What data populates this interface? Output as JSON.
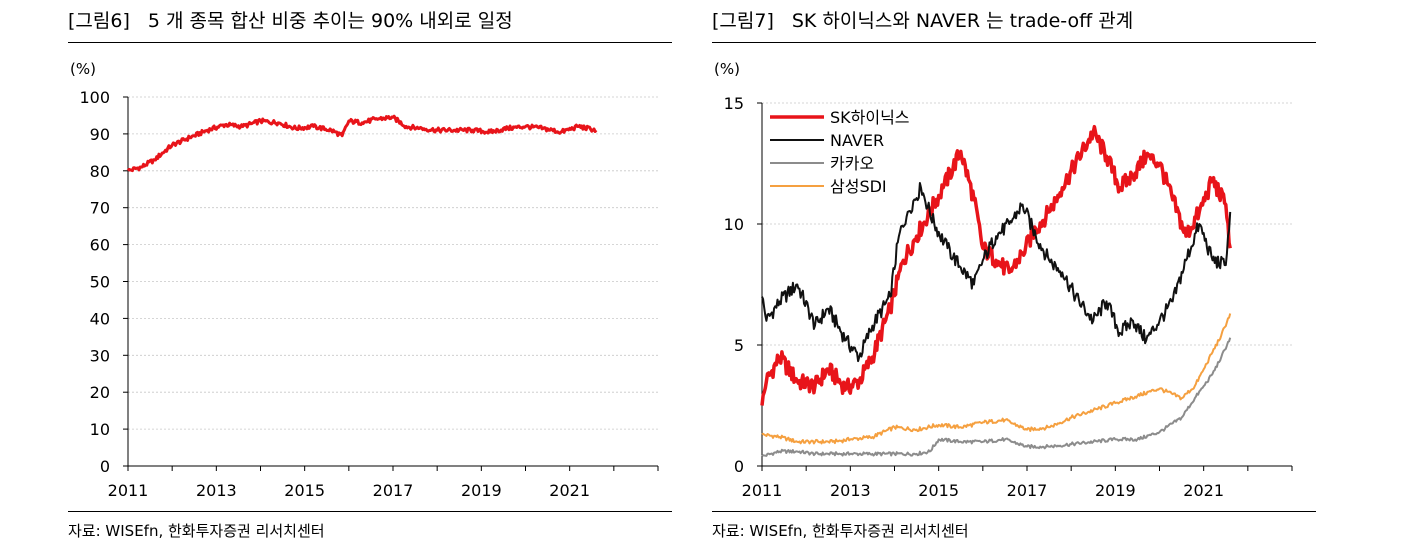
{
  "left": {
    "figure_no": "[그림6]",
    "title": "5 개 종목 합산 비중 추이는 90% 내외로 일정",
    "unit": "(%)",
    "source": "자료: WISEfn, 한화투자증권 리서치센터"
  },
  "right": {
    "figure_no": "[그림7]",
    "title": "SK 하이닉스와 NAVER 는 trade-off 관계",
    "unit": "(%)",
    "source": "자료: WISEfn, 한화투자증권 리서치센터"
  },
  "chart_data": [
    {
      "type": "line",
      "title": "5 개 종목 합산 비중 추이는 90% 내외로 일정",
      "ylabel": "(%)",
      "xlim": [
        2011,
        2023
      ],
      "ylim": [
        0,
        100
      ],
      "yticks": [
        0,
        10,
        20,
        30,
        40,
        50,
        60,
        70,
        80,
        90,
        100
      ],
      "xticks": [
        2011,
        2013,
        2015,
        2017,
        2019,
        2021
      ],
      "grid": true,
      "series": [
        {
          "name": "",
          "color": "#e8141a",
          "x": [
            2011.0,
            2011.3,
            2011.6,
            2012.0,
            2012.4,
            2012.8,
            2013.2,
            2013.6,
            2014.0,
            2014.4,
            2014.8,
            2015.2,
            2015.6,
            2015.85,
            2016.0,
            2016.3,
            2016.6,
            2017.0,
            2017.3,
            2017.6,
            2018.0,
            2018.4,
            2018.8,
            2019.2,
            2019.6,
            2020.0,
            2020.4,
            2020.8,
            2021.2,
            2021.6
          ],
          "y": [
            80,
            81,
            83,
            87,
            89,
            91,
            92.5,
            92,
            93.5,
            93,
            91.5,
            92,
            91,
            89.5,
            93.5,
            93,
            94,
            94.5,
            92,
            91.5,
            91,
            91,
            91,
            90.5,
            91.5,
            92,
            91.5,
            90.5,
            92,
            91
          ]
        }
      ]
    },
    {
      "type": "line",
      "title": "SK 하이닉스와 NAVER 는 trade-off 관계",
      "ylabel": "(%)",
      "xlim": [
        2011,
        2023
      ],
      "ylim": [
        0,
        15
      ],
      "yticks": [
        0,
        5,
        10,
        15
      ],
      "xticks": [
        2011,
        2013,
        2015,
        2017,
        2019,
        2021
      ],
      "grid": true,
      "legend": "top-left",
      "series": [
        {
          "name": "SK하이닉스",
          "color": "#e8141a",
          "x": [
            2011.0,
            2011.1,
            2011.4,
            2011.8,
            2012.2,
            2012.5,
            2012.9,
            2013.2,
            2013.5,
            2013.9,
            2014.2,
            2014.5,
            2014.8,
            2015.1,
            2015.5,
            2015.8,
            2016.0,
            2016.3,
            2016.6,
            2016.9,
            2017.2,
            2017.5,
            2017.8,
            2018.1,
            2018.5,
            2018.8,
            2019.1,
            2019.4,
            2019.7,
            2020.0,
            2020.3,
            2020.6,
            2020.9,
            2021.2,
            2021.5,
            2021.6
          ],
          "y": [
            2.5,
            3.5,
            4.5,
            3.5,
            3.3,
            4.0,
            3.2,
            3.5,
            4.5,
            6.5,
            8.5,
            9.5,
            10.5,
            11.5,
            13.0,
            11.0,
            9.0,
            8.5,
            8.0,
            8.8,
            9.8,
            10.5,
            11.5,
            12.5,
            13.8,
            12.8,
            11.5,
            12.0,
            12.8,
            12.5,
            11.0,
            9.5,
            10.5,
            11.8,
            10.8,
            9.0
          ]
        },
        {
          "name": "NAVER",
          "color": "#111111",
          "x": [
            2011.0,
            2011.1,
            2011.4,
            2011.8,
            2012.2,
            2012.5,
            2012.9,
            2013.2,
            2013.5,
            2013.9,
            2014.1,
            2014.3,
            2014.6,
            2014.9,
            2015.2,
            2015.5,
            2015.8,
            2016.0,
            2016.3,
            2016.6,
            2016.9,
            2017.2,
            2017.5,
            2017.8,
            2018.1,
            2018.5,
            2018.8,
            2019.1,
            2019.4,
            2019.7,
            2020.0,
            2020.3,
            2020.6,
            2020.9,
            2021.2,
            2021.5,
            2021.6
          ],
          "y": [
            7.0,
            6.0,
            6.8,
            7.5,
            5.8,
            6.5,
            5.2,
            4.5,
            5.8,
            7.0,
            9.5,
            10.5,
            11.5,
            10.0,
            9.0,
            8.2,
            7.5,
            8.5,
            9.5,
            10.0,
            10.8,
            9.5,
            8.5,
            8.0,
            7.0,
            6.0,
            6.8,
            5.5,
            6.0,
            5.2,
            6.0,
            6.8,
            8.5,
            10.0,
            8.5,
            8.3,
            10.5
          ]
        },
        {
          "name": "카카오",
          "color": "#8c8c8c",
          "x": [
            2011.0,
            2011.4,
            2011.8,
            2012.2,
            2012.6,
            2013.0,
            2013.5,
            2014.0,
            2014.5,
            2014.8,
            2015.0,
            2015.5,
            2016.0,
            2016.5,
            2017.0,
            2017.5,
            2018.0,
            2018.5,
            2019.0,
            2019.5,
            2020.0,
            2020.5,
            2020.8,
            2021.0,
            2021.2,
            2021.4,
            2021.6
          ],
          "y": [
            0.4,
            0.6,
            0.6,
            0.5,
            0.5,
            0.5,
            0.5,
            0.5,
            0.5,
            0.6,
            1.1,
            1.0,
            1.0,
            1.1,
            0.8,
            0.8,
            0.9,
            1.0,
            1.1,
            1.1,
            1.4,
            2.0,
            2.8,
            3.3,
            3.8,
            4.5,
            5.3
          ]
        },
        {
          "name": "삼성SDI",
          "color": "#f5a040",
          "x": [
            2011.0,
            2011.4,
            2011.8,
            2012.2,
            2012.6,
            2013.0,
            2013.5,
            2014.0,
            2014.5,
            2015.0,
            2015.5,
            2016.0,
            2016.5,
            2017.0,
            2017.5,
            2018.0,
            2018.5,
            2019.0,
            2019.5,
            2020.0,
            2020.5,
            2020.8,
            2021.0,
            2021.2,
            2021.4,
            2021.6
          ],
          "y": [
            1.3,
            1.2,
            1.0,
            1.0,
            1.0,
            1.1,
            1.2,
            1.6,
            1.5,
            1.7,
            1.6,
            1.8,
            1.9,
            1.5,
            1.6,
            2.0,
            2.3,
            2.6,
            2.9,
            3.2,
            2.8,
            3.3,
            4.0,
            4.7,
            5.4,
            6.3
          ]
        }
      ]
    }
  ]
}
